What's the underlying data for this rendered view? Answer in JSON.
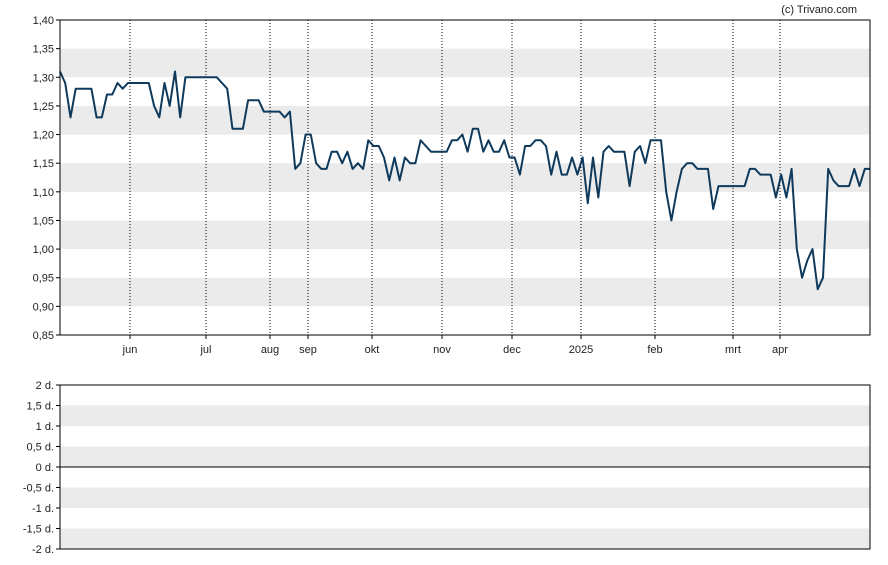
{
  "copyright": "(c) Trivano.com",
  "chart_data": [
    {
      "type": "line",
      "title": "",
      "ylim": [
        0.85,
        1.4
      ],
      "y_ticks": [
        "1,40",
        "1,35",
        "1,30",
        "1,25",
        "1,20",
        "1,15",
        "1,10",
        "1,05",
        "1,00",
        "0,95",
        "0,90",
        "0,85"
      ],
      "x_ticks": [
        "jun",
        "jul",
        "aug",
        "sep",
        "okt",
        "nov",
        "dec",
        "2025",
        "feb",
        "mrt",
        "apr"
      ],
      "grid": "horizontal bands, dotted vertical month lines",
      "line_color": "#0f3a5c",
      "values": [
        1.31,
        1.29,
        1.23,
        1.28,
        1.28,
        1.28,
        1.28,
        1.23,
        1.23,
        1.27,
        1.27,
        1.29,
        1.28,
        1.29,
        1.29,
        1.29,
        1.29,
        1.29,
        1.25,
        1.23,
        1.29,
        1.25,
        1.31,
        1.23,
        1.3,
        1.3,
        1.3,
        1.3,
        1.3,
        1.3,
        1.3,
        1.29,
        1.28,
        1.21,
        1.21,
        1.21,
        1.26,
        1.26,
        1.26,
        1.24,
        1.24,
        1.24,
        1.24,
        1.23,
        1.24,
        1.14,
        1.15,
        1.2,
        1.2,
        1.15,
        1.14,
        1.14,
        1.17,
        1.17,
        1.15,
        1.17,
        1.14,
        1.15,
        1.14,
        1.19,
        1.18,
        1.18,
        1.16,
        1.12,
        1.16,
        1.12,
        1.16,
        1.15,
        1.15,
        1.19,
        1.18,
        1.17,
        1.17,
        1.17,
        1.17,
        1.19,
        1.19,
        1.2,
        1.17,
        1.21,
        1.21,
        1.17,
        1.19,
        1.17,
        1.17,
        1.19,
        1.16,
        1.16,
        1.13,
        1.18,
        1.18,
        1.19,
        1.19,
        1.18,
        1.13,
        1.17,
        1.13,
        1.13,
        1.16,
        1.13,
        1.16,
        1.08,
        1.16,
        1.09,
        1.17,
        1.18,
        1.17,
        1.17,
        1.17,
        1.11,
        1.17,
        1.18,
        1.15,
        1.19,
        1.19,
        1.19,
        1.1,
        1.05,
        1.1,
        1.14,
        1.15,
        1.15,
        1.14,
        1.14,
        1.14,
        1.07,
        1.11,
        1.11,
        1.11,
        1.11,
        1.11,
        1.11,
        1.14,
        1.14,
        1.13,
        1.13,
        1.13,
        1.09,
        1.13,
        1.09,
        1.14,
        1.0,
        0.95,
        0.98,
        1.0,
        0.93,
        0.95,
        1.14,
        1.12,
        1.11,
        1.11,
        1.11,
        1.14,
        1.11,
        1.14,
        1.14
      ]
    },
    {
      "type": "line",
      "title": "",
      "ylim": [
        -2,
        2
      ],
      "y_ticks": [
        "2 d.",
        "1,5 d.",
        "1 d.",
        "0,5 d.",
        "0 d.",
        "-0,5 d.",
        "-1 d.",
        "-1,5 d.",
        "-2 d."
      ],
      "values": []
    }
  ]
}
